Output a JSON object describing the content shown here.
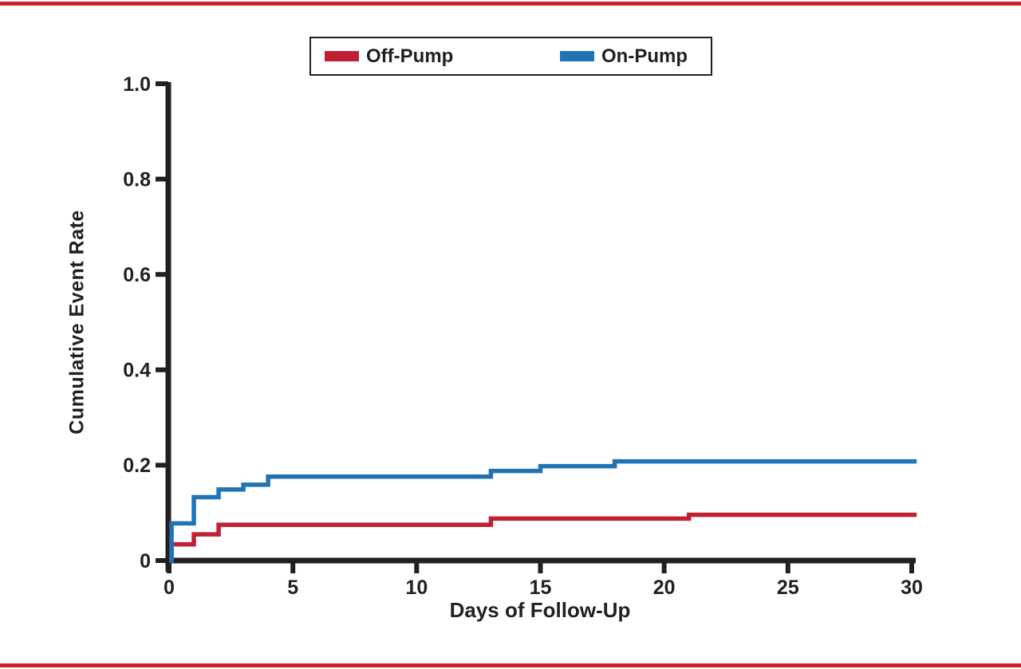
{
  "colors": {
    "rule_red": "#cd2129",
    "axis": "#231f20",
    "off_pump_red": "#bf2032",
    "on_pump_blue": "#2173b4"
  },
  "legend": {
    "off_pump_label": "Off-Pump",
    "on_pump_label": "On-Pump"
  },
  "chart_data": {
    "type": "line",
    "step": "after",
    "title": "",
    "xlabel": "Days of Follow-Up",
    "ylabel": "Cumulative Event Rate",
    "xlim": [
      0,
      30
    ],
    "ylim": [
      0,
      1.0
    ],
    "grid": false,
    "legend_position": "top-center",
    "xticks": [
      0,
      5,
      10,
      15,
      20,
      25,
      30
    ],
    "xtick_labels": [
      "0",
      "5",
      "10",
      "15",
      "20",
      "25",
      "30"
    ],
    "yticks": [
      0,
      0.2,
      0.4,
      0.6,
      0.8,
      1.0
    ],
    "ytick_labels": [
      "0",
      "0.2",
      "0.4",
      "0.6",
      "0.8",
      "1.0"
    ],
    "series": [
      {
        "name": "Off-Pump",
        "color": "#bf2032",
        "points": [
          [
            0,
            0
          ],
          [
            0.1,
            0.034
          ],
          [
            1,
            0.055
          ],
          [
            2,
            0.075
          ],
          [
            13,
            0.088
          ],
          [
            21,
            0.096
          ],
          [
            30.2,
            0.096
          ]
        ]
      },
      {
        "name": "On-Pump",
        "color": "#2173b4",
        "points": [
          [
            0,
            0
          ],
          [
            0.1,
            0.078
          ],
          [
            1,
            0.133
          ],
          [
            2,
            0.149
          ],
          [
            3,
            0.159
          ],
          [
            4,
            0.176
          ],
          [
            13,
            0.188
          ],
          [
            15,
            0.198
          ],
          [
            18,
            0.208
          ],
          [
            30.2,
            0.208
          ]
        ]
      }
    ]
  }
}
